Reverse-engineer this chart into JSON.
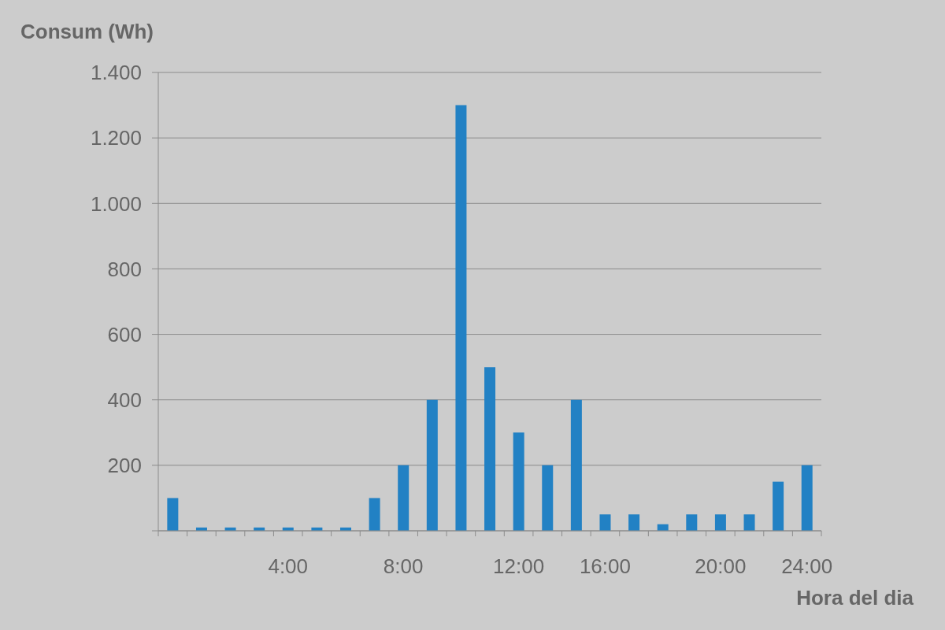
{
  "chart_data": {
    "type": "bar",
    "xlabel": "Hora del dia",
    "ylabel": "Consum (Wh)",
    "categories": [
      null,
      null,
      null,
      null,
      "4:00",
      null,
      null,
      null,
      "8:00",
      null,
      null,
      null,
      "12:00",
      null,
      null,
      "16:00",
      null,
      null,
      null,
      "20:00",
      null,
      null,
      "24:00"
    ],
    "values": [
      100,
      10,
      10,
      10,
      10,
      10,
      10,
      100,
      200,
      400,
      1300,
      500,
      300,
      200,
      400,
      50,
      50,
      20,
      50,
      50,
      50,
      150,
      200
    ],
    "color": "#2281c4",
    "ylim": [
      0,
      1400
    ],
    "yticks": [
      {
        "value": 0,
        "label": null
      },
      {
        "value": 200,
        "label": "200"
      },
      {
        "value": 400,
        "label": "400"
      },
      {
        "value": 600,
        "label": "600"
      },
      {
        "value": 800,
        "label": "800"
      },
      {
        "value": 1000,
        "label": "1.000"
      },
      {
        "value": 1200,
        "label": "1.200"
      },
      {
        "value": 1400,
        "label": "1.400"
      }
    ],
    "grid": "y"
  }
}
